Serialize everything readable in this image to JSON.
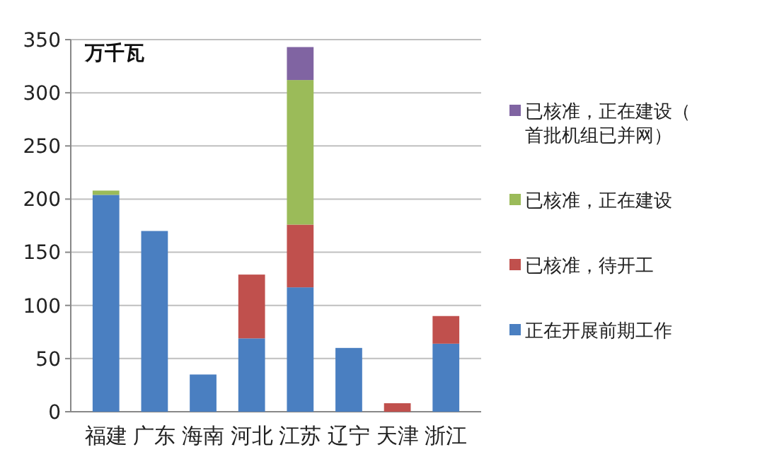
{
  "chart_data": {
    "type": "bar",
    "stacked": true,
    "ylabel": "万千瓦",
    "categories": [
      "福建",
      "广东",
      "海南",
      "河北",
      "江苏",
      "辽宁",
      "天津",
      "浙江"
    ],
    "series": [
      {
        "name": "正在开展前期工作",
        "color": "#4a7fc1",
        "values": [
          204,
          170,
          35,
          69,
          117,
          60,
          null,
          64
        ]
      },
      {
        "name": "已核准，待开工",
        "color": "#c0504d",
        "values": [
          null,
          null,
          null,
          60,
          59,
          null,
          8,
          26
        ]
      },
      {
        "name": "已核准，正在建设",
        "color": "#9bbb59",
        "values": [
          4,
          null,
          null,
          null,
          136,
          null,
          null,
          null
        ]
      },
      {
        "name": "已核准，正在建设（首批机组已并网）",
        "color": "#8064a2",
        "values": [
          null,
          null,
          null,
          null,
          31,
          null,
          null,
          null
        ]
      }
    ],
    "ylim": [
      0,
      350
    ],
    "yticks": [
      0,
      50,
      100,
      150,
      200,
      250,
      300,
      350
    ],
    "grid": "y",
    "legend": "right"
  }
}
